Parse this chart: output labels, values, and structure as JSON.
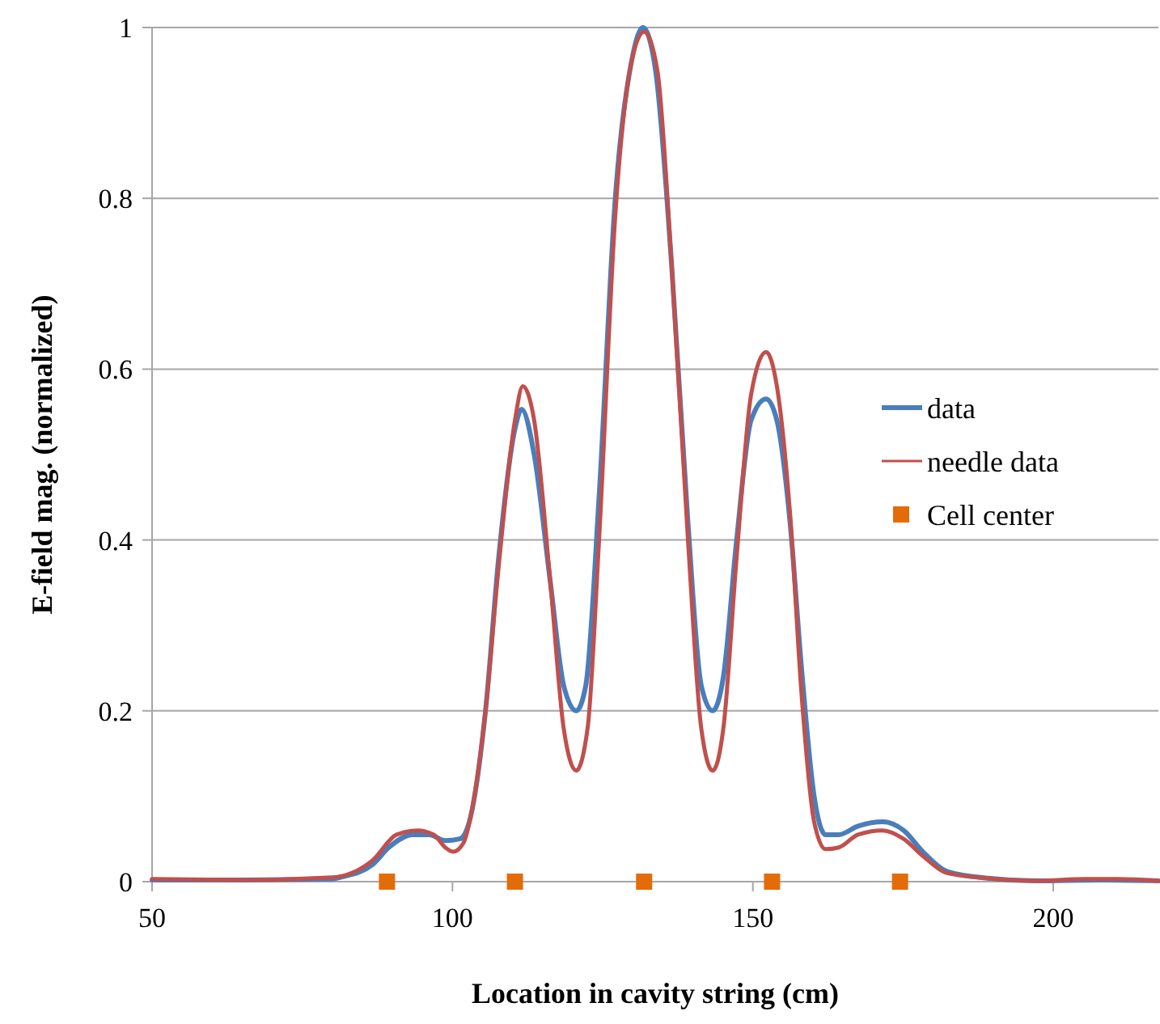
{
  "chart_data": {
    "type": "line",
    "xlabel": "Location in cavity string (cm)",
    "ylabel": "E-field mag. (normalized)",
    "xlim": [
      50,
      217.5
    ],
    "ylim": [
      0,
      1
    ],
    "xticks": [
      50,
      100,
      150,
      200
    ],
    "yticks": [
      0,
      {
        "value": 0.2,
        "label": "0.2"
      },
      {
        "value": 0.4,
        "label": "0.4"
      },
      {
        "value": 0.6,
        "label": "0.6"
      },
      {
        "value": 0.8,
        "label": "0.8"
      },
      1
    ],
    "grid": "y",
    "legend": "right",
    "line_style": "solid",
    "series": [
      {
        "name": "data",
        "color": "#4a7ebb",
        "x": [
          50,
          65,
          80,
          81.3,
          86.7,
          89.4,
          93.4,
          96.1,
          98.8,
          101.2,
          102.8,
          105.5,
          107.7,
          110.4,
          111.5,
          113.6,
          116.3,
          118.5,
          120.6,
          122.2,
          124.4,
          127.1,
          129.8,
          131.7,
          133.8,
          136.5,
          139.2,
          141.4,
          143.3,
          145.1,
          147.3,
          149.7,
          152.2,
          154.0,
          156.2,
          158.1,
          160.2,
          162.1,
          164.3,
          167.5,
          171.6,
          175.1,
          178.3,
          182.3,
          189.1,
          197.2,
          208,
          217.5
        ],
        "values": [
          0.002,
          0.002,
          0.003,
          0.005,
          0.02,
          0.04,
          0.055,
          0.055,
          0.048,
          0.05,
          0.07,
          0.2,
          0.38,
          0.53,
          0.553,
          0.5,
          0.35,
          0.23,
          0.2,
          0.23,
          0.45,
          0.8,
          0.96,
          1.0,
          0.95,
          0.72,
          0.42,
          0.23,
          0.2,
          0.24,
          0.4,
          0.54,
          0.565,
          0.54,
          0.42,
          0.25,
          0.1,
          0.055,
          0.055,
          0.065,
          0.07,
          0.06,
          0.035,
          0.012,
          0.004,
          0.001,
          0.002,
          0.001
        ]
      },
      {
        "name": "needle data",
        "color": "#c0504d",
        "x": [
          50,
          65,
          80,
          86.7,
          90.7,
          94.2,
          96.9,
          98.8,
          100.1,
          101.8,
          103.4,
          105.5,
          107.7,
          110.4,
          111.7,
          113.6,
          116.3,
          118.5,
          120.6,
          122.5,
          124.4,
          127.1,
          129.8,
          131.9,
          134.1,
          136.5,
          139.2,
          141.4,
          143.3,
          145.1,
          147.3,
          149.7,
          152.2,
          154.0,
          156.2,
          158.1,
          160.2,
          162.1,
          164.3,
          167.5,
          171.6,
          175.1,
          178.3,
          182.3,
          189.1,
          197.2,
          205.3,
          210.7,
          217.5
        ],
        "values": [
          0.003,
          0.002,
          0.005,
          0.025,
          0.055,
          0.06,
          0.055,
          0.04,
          0.035,
          0.045,
          0.09,
          0.2,
          0.37,
          0.54,
          0.58,
          0.54,
          0.35,
          0.18,
          0.13,
          0.18,
          0.4,
          0.78,
          0.96,
          0.995,
          0.95,
          0.72,
          0.4,
          0.18,
          0.13,
          0.18,
          0.38,
          0.57,
          0.62,
          0.58,
          0.43,
          0.22,
          0.07,
          0.038,
          0.04,
          0.055,
          0.06,
          0.05,
          0.03,
          0.01,
          0.004,
          0.001,
          0.003,
          0.003,
          0.001
        ]
      },
      {
        "name": "Cell center",
        "type": "scatter",
        "marker": "square",
        "color": "#e36c09",
        "x": [
          89.1,
          110.4,
          131.9,
          153.2,
          174.5
        ],
        "values": [
          0,
          0,
          0,
          0,
          0
        ]
      }
    ]
  }
}
